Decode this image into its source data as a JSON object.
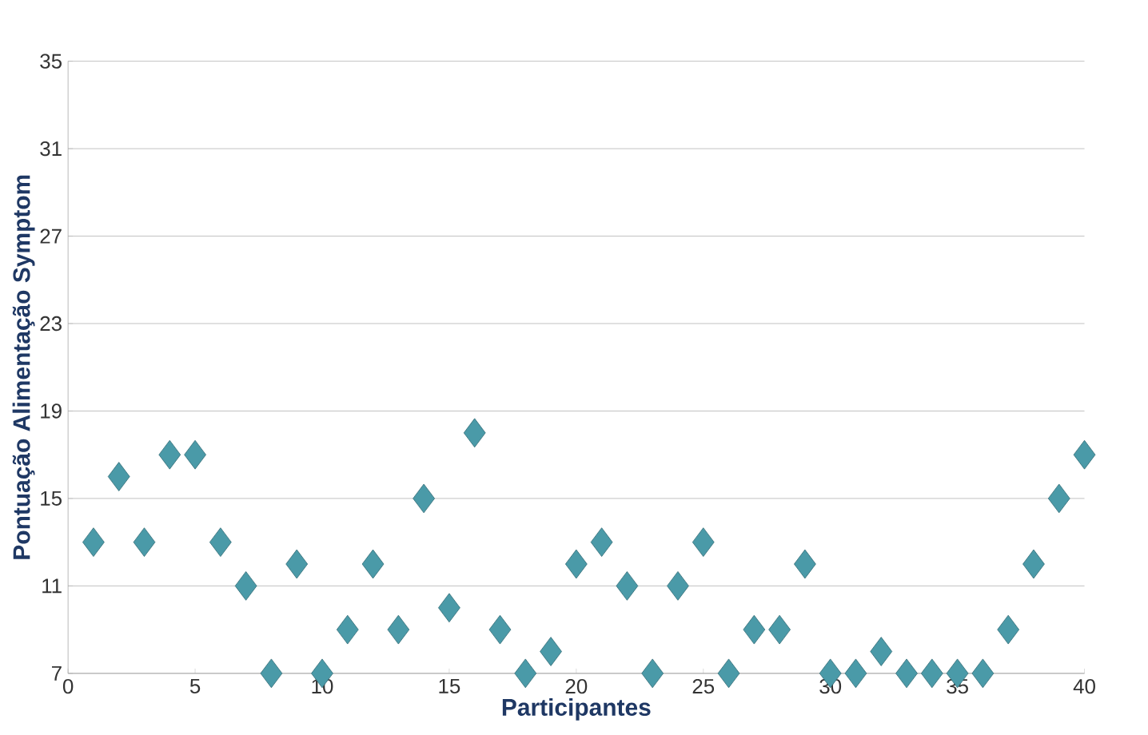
{
  "chart_data": {
    "type": "scatter",
    "xlabel": "Participantes",
    "ylabel": "Pontuação  Alimentação Symptom",
    "x": [
      1,
      2,
      3,
      4,
      5,
      6,
      7,
      8,
      9,
      10,
      11,
      12,
      13,
      14,
      15,
      16,
      17,
      18,
      19,
      20,
      21,
      22,
      23,
      24,
      25,
      26,
      27,
      28,
      29,
      30,
      31,
      32,
      33,
      34,
      35,
      36,
      37,
      38,
      39,
      40
    ],
    "values": [
      13,
      16,
      13,
      17,
      17,
      13,
      11,
      7,
      12,
      7,
      9,
      12,
      9,
      15,
      10,
      18,
      9,
      7,
      8,
      12,
      13,
      11,
      7,
      11,
      13,
      7,
      9,
      9,
      12,
      7,
      7,
      8,
      7,
      7,
      7,
      7,
      9,
      12,
      15,
      17
    ],
    "color": "#4a9aa8",
    "marker": "diamond",
    "xlim": [
      0,
      40
    ],
    "xticks": [
      0,
      5,
      10,
      15,
      20,
      25,
      30,
      35,
      40
    ],
    "ylim": [
      7,
      35
    ],
    "yticks": [
      7,
      11,
      15,
      19,
      23,
      27,
      31,
      35
    ],
    "grid": "y"
  }
}
